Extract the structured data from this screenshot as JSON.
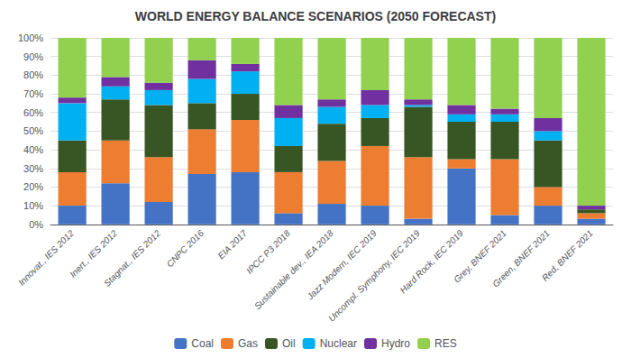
{
  "chart_data": {
    "type": "bar",
    "title": "WORLD ENERGY BALANCE SCENARIOS (2050 FORECAST)",
    "categories": [
      "Innovat., IES 2012",
      "Inert., IES 2012",
      "Stagnat., IES 2012",
      "CNPC 2016",
      "EIA 2017",
      "IPCC P3 2018",
      "Sustainable dev., IEA 2018",
      "Jazz Modern, IEC 2019",
      "Uncompl. Symphony, IEC 2019",
      "Hard Rock, IEC 2019",
      "Grey, BNEF 2021",
      "Green, BNEF 2021",
      "Red, BNEF 2021"
    ],
    "series": [
      {
        "name": "Coal",
        "color": "#4472C4",
        "values": [
          10,
          22,
          12,
          27,
          28,
          6,
          11,
          10,
          3,
          30,
          5,
          10,
          3
        ]
      },
      {
        "name": "Gas",
        "color": "#ED7D31",
        "values": [
          18,
          23,
          24,
          24,
          28,
          22,
          23,
          32,
          33,
          5,
          30,
          10,
          3
        ]
      },
      {
        "name": "Oil",
        "color": "#375623",
        "values": [
          17,
          22,
          28,
          14,
          14,
          14,
          20,
          15,
          27,
          20,
          20,
          25,
          2
        ]
      },
      {
        "name": "Nuclear",
        "color": "#00B0F0",
        "values": [
          20,
          7,
          8,
          13,
          12,
          15,
          9,
          7,
          1,
          4,
          4,
          5,
          0
        ]
      },
      {
        "name": "Hydro",
        "color": "#7030A0",
        "values": [
          3,
          5,
          4,
          10,
          4,
          7,
          4,
          8,
          3,
          5,
          3,
          7,
          2
        ]
      },
      {
        "name": "RES",
        "color": "#92D050",
        "values": [
          32,
          21,
          24,
          12,
          14,
          36,
          33,
          28,
          33,
          36,
          38,
          43,
          90
        ]
      }
    ],
    "ylim": [
      0,
      100
    ],
    "yticks": [
      {
        "value": 0,
        "label": "0%"
      },
      {
        "value": 10,
        "label": "10%"
      },
      {
        "value": 20,
        "label": "20%"
      },
      {
        "value": 30,
        "label": "30%"
      },
      {
        "value": 40,
        "label": "40%"
      },
      {
        "value": 50,
        "label": "50%"
      },
      {
        "value": 60,
        "label": "60%"
      },
      {
        "value": 70,
        "label": "70%"
      },
      {
        "value": 80,
        "label": "80%"
      },
      {
        "value": 90,
        "label": "90%"
      },
      {
        "value": 100,
        "label": "100%"
      }
    ],
    "stacked": true,
    "grid": true,
    "legend": "bottom"
  }
}
